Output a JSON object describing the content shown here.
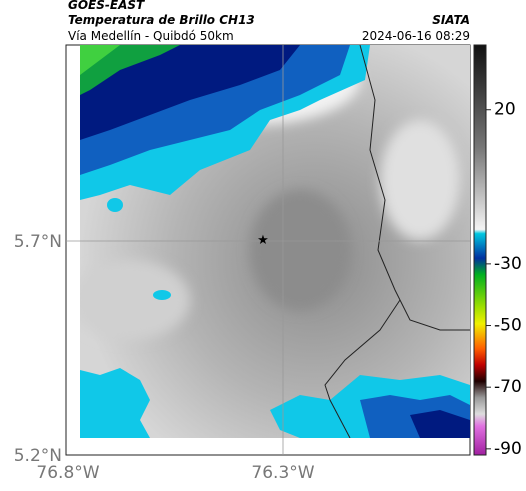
{
  "header": {
    "satellite": "GOES-EAST",
    "product": "Temperatura de Brillo CH13",
    "source": "SIATA",
    "location": "Vía Medellín - Quibdó 50km",
    "datetime": "2024-06-16 08:29"
  },
  "map": {
    "lat_labels": [
      "5.7°N",
      "5.2°N"
    ],
    "lon_labels": [
      "76.8°W",
      "76.3°W"
    ]
  },
  "colorbar": {
    "lim": [
      41,
      -92
    ],
    "ticks": [
      20,
      -30,
      -50,
      -70,
      -90
    ]
  }
}
